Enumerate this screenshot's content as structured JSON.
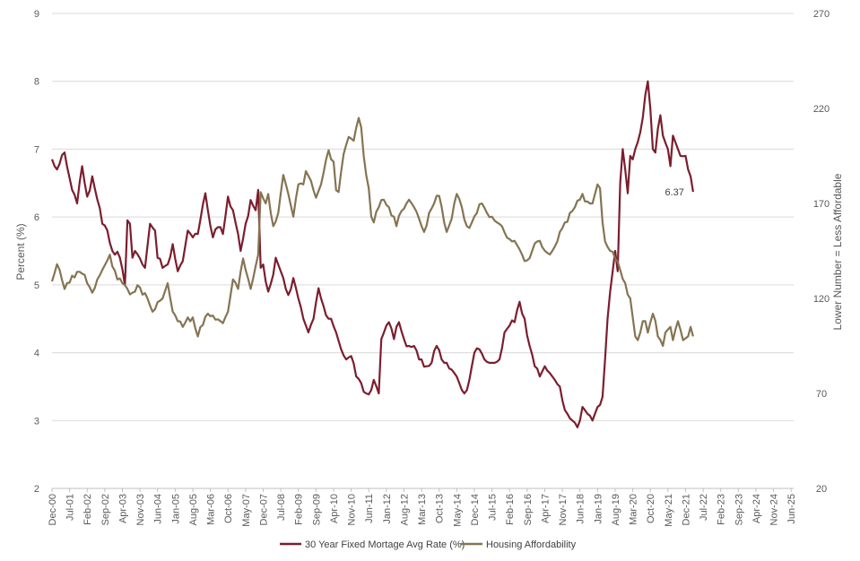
{
  "chart_data": {
    "type": "line",
    "title": "",
    "ylabel": "Percent (%)",
    "y2label": "Lower Number = Less Affordable",
    "ylim": [
      2,
      9
    ],
    "y2lim": [
      20,
      270
    ],
    "yticks": [
      "2",
      "3",
      "4",
      "5",
      "6",
      "7",
      "8",
      "9"
    ],
    "y2ticks": [
      "20",
      "70",
      "120",
      "170",
      "220",
      "270"
    ],
    "grid": true,
    "legend_position": "bottom",
    "x_start": "Dec-00",
    "x_labels": [
      "Dec-00",
      "Jul-01",
      "Feb-02",
      "Sep-02",
      "Apr-03",
      "Nov-03",
      "Jun-04",
      "Jan-05",
      "Aug-05",
      "Mar-06",
      "Oct-06",
      "May-07",
      "Dec-07",
      "Jul-08",
      "Feb-09",
      "Sep-09",
      "Apr-10",
      "Nov-10",
      "Jun-11",
      "Jan-12",
      "Aug-12",
      "Mar-13",
      "Oct-13",
      "May-14",
      "Dec-14",
      "Jul-15",
      "Feb-16",
      "Sep-16",
      "Apr-17",
      "Nov-17",
      "Jun-18",
      "Jan-19",
      "Aug-19",
      "Mar-20",
      "Oct-20",
      "May-21",
      "Dec-21",
      "Jul-22",
      "Feb-23",
      "Sep-23",
      "Apr-24",
      "Nov-24",
      "Jun-25"
    ],
    "annotation": {
      "text": "6.37",
      "series": 0
    },
    "series": [
      {
        "name": "30 Year Fixed Mortage Avg Rate (%)",
        "axis": "left",
        "color": "#7B1E2E",
        "anchors": [
          [
            0,
            6.85
          ],
          [
            2,
            6.7
          ],
          [
            5,
            6.95
          ],
          [
            8,
            6.4
          ],
          [
            10,
            6.2
          ],
          [
            12,
            6.75
          ],
          [
            14,
            6.3
          ],
          [
            16,
            6.6
          ],
          [
            20,
            5.9
          ],
          [
            22,
            5.8
          ],
          [
            24,
            5.5
          ],
          [
            27,
            5.4
          ],
          [
            29,
            5.0
          ],
          [
            30,
            5.95
          ],
          [
            31,
            5.9
          ],
          [
            32,
            5.4
          ],
          [
            33,
            5.5
          ],
          [
            36,
            5.3
          ],
          [
            37,
            5.25
          ],
          [
            39,
            5.9
          ],
          [
            41,
            5.8
          ],
          [
            42,
            5.4
          ],
          [
            44,
            5.25
          ],
          [
            46,
            5.3
          ],
          [
            48,
            5.6
          ],
          [
            50,
            5.2
          ],
          [
            52,
            5.35
          ],
          [
            54,
            5.8
          ],
          [
            56,
            5.7
          ],
          [
            58,
            5.75
          ],
          [
            61,
            6.35
          ],
          [
            62,
            6.1
          ],
          [
            64,
            5.7
          ],
          [
            66,
            5.85
          ],
          [
            68,
            5.75
          ],
          [
            70,
            6.3
          ],
          [
            72,
            6.1
          ],
          [
            74,
            5.75
          ],
          [
            75,
            5.5
          ],
          [
            77,
            5.9
          ],
          [
            79,
            6.25
          ],
          [
            81,
            6.1
          ],
          [
            82,
            6.4
          ],
          [
            83,
            5.25
          ],
          [
            84,
            5.3
          ],
          [
            86,
            4.9
          ],
          [
            88,
            5.15
          ],
          [
            89,
            5.4
          ],
          [
            91,
            5.2
          ],
          [
            92,
            5.1
          ],
          [
            94,
            4.85
          ],
          [
            96,
            5.1
          ],
          [
            98,
            4.8
          ],
          [
            100,
            4.5
          ],
          [
            102,
            4.3
          ],
          [
            104,
            4.5
          ],
          [
            106,
            4.95
          ],
          [
            107,
            4.8
          ],
          [
            109,
            4.55
          ],
          [
            111,
            4.5
          ],
          [
            113,
            4.3
          ],
          [
            115,
            4.05
          ],
          [
            117,
            3.9
          ],
          [
            119,
            3.95
          ],
          [
            121,
            3.65
          ],
          [
            123,
            3.55
          ],
          [
            125,
            3.4
          ],
          [
            127,
            3.45
          ],
          [
            128,
            3.6
          ],
          [
            130,
            3.4
          ],
          [
            131,
            4.2
          ],
          [
            133,
            4.4
          ],
          [
            134,
            4.45
          ],
          [
            136,
            4.2
          ],
          [
            138,
            4.45
          ],
          [
            140,
            4.2
          ],
          [
            142,
            4.1
          ],
          [
            144,
            4.1
          ],
          [
            146,
            3.9
          ],
          [
            147,
            3.9
          ],
          [
            149,
            3.8
          ],
          [
            151,
            3.85
          ],
          [
            153,
            4.1
          ],
          [
            155,
            3.9
          ],
          [
            157,
            3.85
          ],
          [
            159,
            3.75
          ],
          [
            161,
            3.65
          ],
          [
            163,
            3.45
          ],
          [
            164,
            3.4
          ],
          [
            166,
            3.6
          ],
          [
            168,
            4.0
          ],
          [
            170,
            4.05
          ],
          [
            172,
            3.9
          ],
          [
            174,
            3.85
          ],
          [
            176,
            3.85
          ],
          [
            178,
            3.9
          ],
          [
            180,
            4.3
          ],
          [
            182,
            4.4
          ],
          [
            184,
            4.45
          ],
          [
            186,
            4.75
          ],
          [
            188,
            4.5
          ],
          [
            190,
            4.1
          ],
          [
            192,
            3.8
          ],
          [
            194,
            3.65
          ],
          [
            196,
            3.8
          ],
          [
            198,
            3.7
          ],
          [
            200,
            3.6
          ],
          [
            202,
            3.5
          ],
          [
            203,
            3.3
          ],
          [
            205,
            3.1
          ],
          [
            207,
            3.0
          ],
          [
            209,
            2.9
          ],
          [
            210,
            3.0
          ],
          [
            211,
            3.2
          ],
          [
            213,
            3.1
          ],
          [
            215,
            3.0
          ],
          [
            217,
            3.2
          ],
          [
            219,
            3.35
          ],
          [
            221,
            4.5
          ],
          [
            222,
            4.9
          ],
          [
            224,
            5.5
          ],
          [
            225,
            5.2
          ],
          [
            226,
            6.5
          ],
          [
            227,
            7.0
          ],
          [
            228,
            6.7
          ],
          [
            229,
            6.35
          ],
          [
            230,
            6.9
          ],
          [
            231,
            6.85
          ],
          [
            232,
            7.0
          ],
          [
            234,
            7.25
          ],
          [
            236,
            7.8
          ],
          [
            237,
            8.0
          ],
          [
            238,
            7.6
          ],
          [
            239,
            7.0
          ],
          [
            240,
            6.95
          ],
          [
            241,
            7.3
          ],
          [
            242,
            7.5
          ],
          [
            243,
            7.2
          ],
          [
            245,
            7.0
          ],
          [
            246,
            6.75
          ],
          [
            247,
            7.2
          ],
          [
            248,
            7.1
          ],
          [
            249,
            7.0
          ],
          [
            250,
            6.9
          ],
          [
            252,
            6.9
          ],
          [
            253,
            6.7
          ],
          [
            254,
            6.6
          ],
          [
            255,
            6.37
          ]
        ]
      },
      {
        "name": "Housing Affordability",
        "axis": "right",
        "color": "#857452",
        "anchors": [
          [
            0,
            129
          ],
          [
            2,
            138
          ],
          [
            5,
            125
          ],
          [
            8,
            132
          ],
          [
            10,
            134
          ],
          [
            12,
            133
          ],
          [
            14,
            128
          ],
          [
            16,
            123
          ],
          [
            18,
            130
          ],
          [
            20,
            135
          ],
          [
            22,
            140
          ],
          [
            23,
            143
          ],
          [
            26,
            130
          ],
          [
            28,
            128
          ],
          [
            30,
            125
          ],
          [
            32,
            123
          ],
          [
            34,
            127
          ],
          [
            36,
            122
          ],
          [
            38,
            120
          ],
          [
            40,
            113
          ],
          [
            42,
            118
          ],
          [
            44,
            120
          ],
          [
            46,
            128
          ],
          [
            48,
            113
          ],
          [
            50,
            108
          ],
          [
            52,
            105
          ],
          [
            54,
            110
          ],
          [
            56,
            110
          ],
          [
            58,
            100
          ],
          [
            60,
            106
          ],
          [
            62,
            112
          ],
          [
            64,
            111
          ],
          [
            66,
            109
          ],
          [
            68,
            107
          ],
          [
            70,
            113
          ],
          [
            72,
            130
          ],
          [
            74,
            125
          ],
          [
            76,
            141
          ],
          [
            77,
            135
          ],
          [
            79,
            125
          ],
          [
            81,
            137
          ],
          [
            82,
            143
          ],
          [
            83,
            176
          ],
          [
            85,
            170
          ],
          [
            86,
            175
          ],
          [
            88,
            158
          ],
          [
            90,
            165
          ],
          [
            92,
            185
          ],
          [
            94,
            175
          ],
          [
            96,
            163
          ],
          [
            98,
            180
          ],
          [
            100,
            180
          ],
          [
            101,
            187
          ],
          [
            103,
            182
          ],
          [
            105,
            173
          ],
          [
            107,
            180
          ],
          [
            109,
            193
          ],
          [
            110,
            198
          ],
          [
            112,
            192
          ],
          [
            113,
            177
          ],
          [
            114,
            176
          ],
          [
            116,
            196
          ],
          [
            118,
            205
          ],
          [
            120,
            203
          ],
          [
            122,
            215
          ],
          [
            123,
            210
          ],
          [
            124,
            195
          ],
          [
            126,
            178
          ],
          [
            127,
            163
          ],
          [
            128,
            160
          ],
          [
            130,
            168
          ],
          [
            132,
            172
          ],
          [
            134,
            168
          ],
          [
            136,
            163
          ],
          [
            137,
            158
          ],
          [
            139,
            166
          ],
          [
            141,
            170
          ],
          [
            142,
            172
          ],
          [
            144,
            168
          ],
          [
            146,
            162
          ],
          [
            148,
            155
          ],
          [
            150,
            165
          ],
          [
            152,
            170
          ],
          [
            154,
            174
          ],
          [
            156,
            160
          ],
          [
            157,
            155
          ],
          [
            159,
            162
          ],
          [
            161,
            175
          ],
          [
            163,
            168
          ],
          [
            165,
            158
          ],
          [
            167,
            160
          ],
          [
            169,
            165
          ],
          [
            171,
            170
          ],
          [
            173,
            165
          ],
          [
            175,
            163
          ],
          [
            177,
            160
          ],
          [
            179,
            158
          ],
          [
            181,
            152
          ],
          [
            183,
            150
          ],
          [
            185,
            148
          ],
          [
            187,
            143
          ],
          [
            189,
            140
          ],
          [
            191,
            145
          ],
          [
            193,
            150
          ],
          [
            195,
            147
          ],
          [
            197,
            144
          ],
          [
            199,
            145
          ],
          [
            201,
            150
          ],
          [
            202,
            155
          ],
          [
            204,
            160
          ],
          [
            206,
            165
          ],
          [
            208,
            168
          ],
          [
            210,
            172
          ],
          [
            211,
            175
          ],
          [
            213,
            171
          ],
          [
            215,
            170
          ],
          [
            216,
            175
          ],
          [
            217,
            180
          ],
          [
            218,
            178
          ],
          [
            219,
            160
          ],
          [
            220,
            150
          ],
          [
            222,
            145
          ],
          [
            224,
            141
          ],
          [
            226,
            135
          ],
          [
            228,
            128
          ],
          [
            230,
            120
          ],
          [
            231,
            110
          ],
          [
            232,
            100
          ],
          [
            233,
            98
          ],
          [
            235,
            108
          ],
          [
            236,
            108
          ],
          [
            237,
            102
          ],
          [
            239,
            112
          ],
          [
            241,
            100
          ],
          [
            243,
            95
          ],
          [
            244,
            102
          ],
          [
            246,
            105
          ],
          [
            247,
            98
          ],
          [
            249,
            108
          ],
          [
            251,
            98
          ],
          [
            253,
            100
          ],
          [
            254,
            105
          ],
          [
            255,
            100
          ]
        ]
      }
    ]
  }
}
